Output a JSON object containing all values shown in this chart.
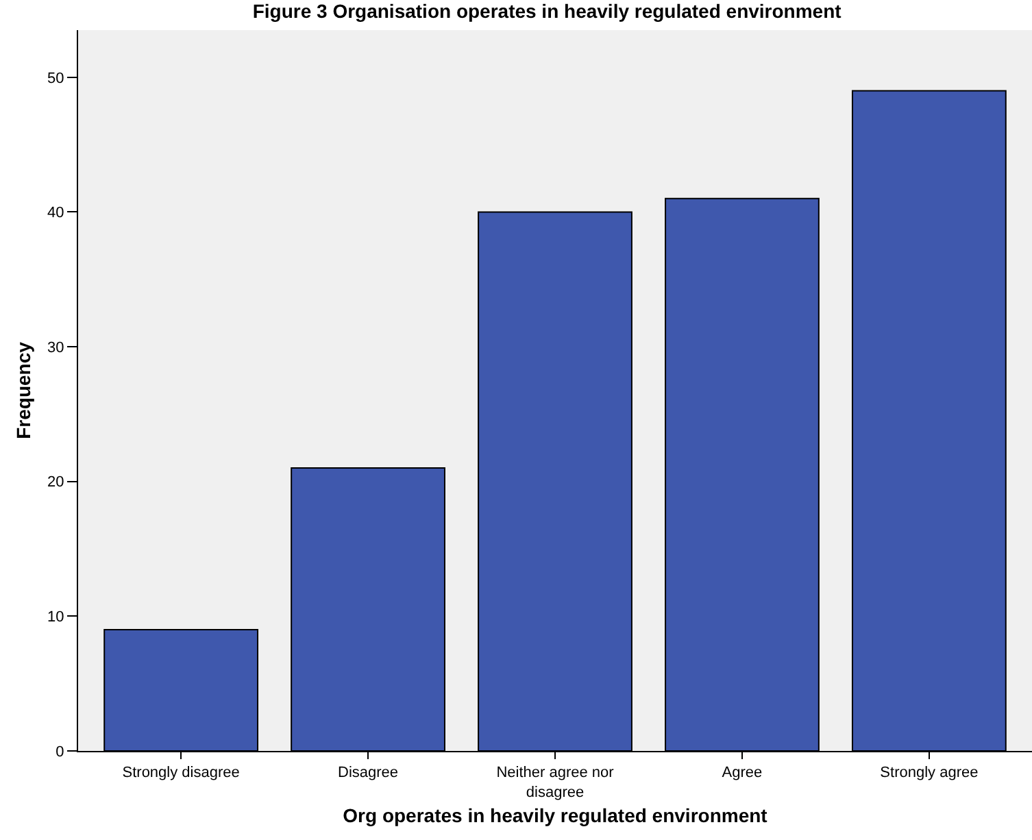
{
  "chart_data": {
    "type": "bar",
    "title": "Figure 3 Organisation operates in heavily regulated environment",
    "xlabel": "Org operates in heavily regulated environment",
    "ylabel": "Frequency",
    "categories": [
      "Strongly disagree",
      "Disagree",
      "Neither agree nor disagree",
      "Agree",
      "Strongly agree"
    ],
    "values": [
      9,
      21,
      40,
      41,
      49
    ],
    "color": "#3f58ad",
    "ylim": [
      0,
      53.5
    ],
    "yticks": [
      0,
      10,
      20,
      30,
      40,
      50
    ],
    "grid": false,
    "legend": false
  }
}
